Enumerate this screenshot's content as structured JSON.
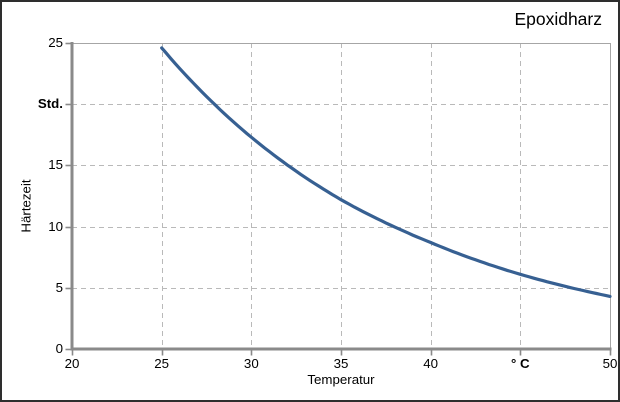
{
  "window": {
    "border_color": "#2e2e2e",
    "background": "#ffffff"
  },
  "chart": {
    "title": "Epoxidharz",
    "xlabel": "Temperatur",
    "ylabel": "Härtezeit",
    "colors": {
      "line": "#376092",
      "axis": "#8a8a8a",
      "grid": "#b9b9b9",
      "plot_border": "#a6a6a6",
      "text": "#000000"
    }
  },
  "chart_data": {
    "type": "line",
    "title": "Epoxidharz",
    "xlabel": "Temperatur",
    "ylabel": "Härtezeit",
    "x_unit": "° C",
    "y_unit": "Std.",
    "x": [
      25,
      30,
      35,
      40,
      45,
      50
    ],
    "y": [
      24.6,
      17.3,
      12.2,
      8.7,
      6.1,
      4.3
    ],
    "xlim": [
      20,
      50
    ],
    "ylim": [
      0,
      25
    ],
    "x_ticks": [
      {
        "value": 20,
        "label": "20",
        "bold": false
      },
      {
        "value": 25,
        "label": "25",
        "bold": false
      },
      {
        "value": 30,
        "label": "30",
        "bold": false
      },
      {
        "value": 35,
        "label": "35",
        "bold": false
      },
      {
        "value": 40,
        "label": "40",
        "bold": false
      },
      {
        "value": 45,
        "label": "° C",
        "bold": true
      },
      {
        "value": 50,
        "label": "50",
        "bold": false
      }
    ],
    "y_ticks": [
      {
        "value": 0,
        "label": "0",
        "bold": false
      },
      {
        "value": 5,
        "label": "5",
        "bold": false
      },
      {
        "value": 10,
        "label": "10",
        "bold": false
      },
      {
        "value": 15,
        "label": "15",
        "bold": false
      },
      {
        "value": 20,
        "label": "Std.",
        "bold": true
      },
      {
        "value": 25,
        "label": "25",
        "bold": false
      }
    ],
    "grid": "dashed",
    "legend": "none"
  }
}
